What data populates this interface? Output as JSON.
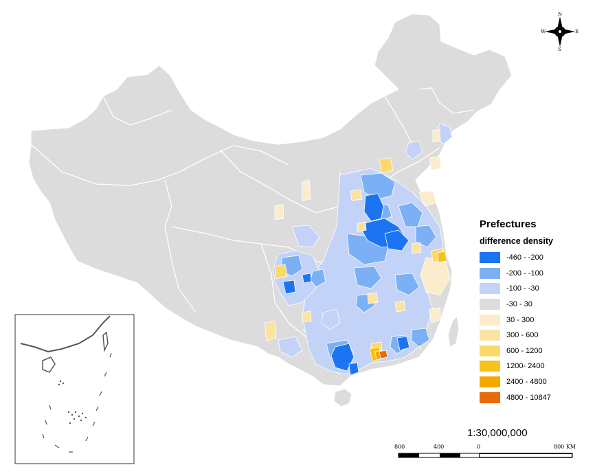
{
  "legend": {
    "title": "Prefectures",
    "subtitle": "difference density",
    "classes": [
      {
        "label": "-460 - -200",
        "color": "#1c74f2"
      },
      {
        "label": "-200 - -100",
        "color": "#7cb0f5"
      },
      {
        "label": "-100 - -30",
        "color": "#c3d3f7"
      },
      {
        "label": "-30 - 30",
        "color": "#dcdcdc"
      },
      {
        "label": "30 - 300",
        "color": "#fbeccc"
      },
      {
        "label": "300 - 600",
        "color": "#fae3a3"
      },
      {
        "label": "600 - 1200",
        "color": "#fbd86a"
      },
      {
        "label": "1200- 2400",
        "color": "#f7c21c"
      },
      {
        "label": "2400 - 4800",
        "color": "#f7a800"
      },
      {
        "label": "4800 - 10847",
        "color": "#e86a0a"
      }
    ]
  },
  "scale": {
    "ratio": "1:30,000,000",
    "ticks": [
      "800",
      "400",
      "0",
      "800 KM"
    ]
  },
  "compass": {
    "n": "N",
    "s": "S",
    "e": "E",
    "w": "W"
  }
}
